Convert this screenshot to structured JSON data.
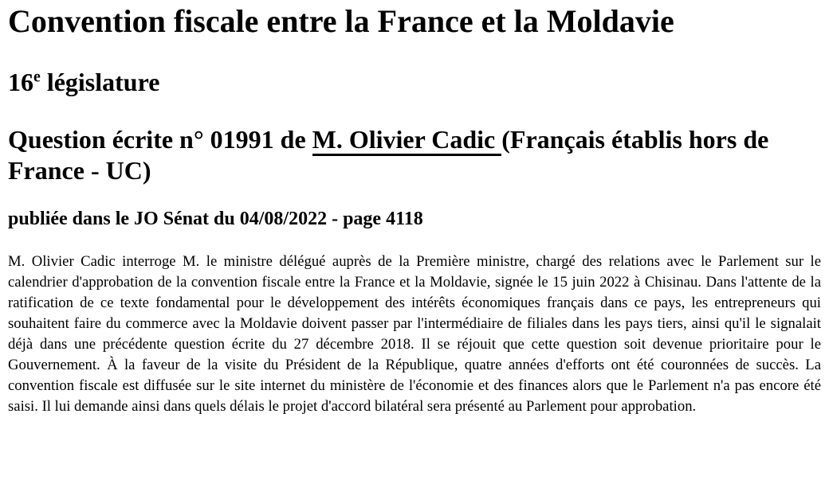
{
  "doc": {
    "title": "Convention fiscale entre la France et la Moldavie",
    "legislature": {
      "number": "16",
      "sup": "e",
      "label": " législature"
    },
    "question": {
      "prefix": "Question écrite n° 01991 de ",
      "senator": "M. Olivier Cadic ",
      "suffix": "(Français établis hors de France - UC)"
    },
    "publication": "publiée dans le JO Sénat du 04/08/2022 - page 4118",
    "body": "M. Olivier Cadic interroge M. le ministre délégué auprès de la Première ministre, chargé des relations avec le Parlement sur le calendrier d'approbation de la convention fiscale entre la France et la Moldavie, signée le 15 juin 2022 à Chisinau. Dans l'attente de la ratification de ce texte fondamental pour le développement des intérêts économiques français dans ce pays, les entrepreneurs qui souhaitent faire du commerce avec la Moldavie doivent passer par l'intermédiaire de filiales dans les pays tiers, ainsi qu'il le signalait déjà dans une précédente question écrite du 27 décembre 2018. Il se réjouit que cette question soit devenue prioritaire pour le Gouvernement. À la faveur de la visite du Président de la République, quatre années d'efforts ont été couronnées de succès. La convention fiscale est diffusée sur le site internet du ministère de l'économie et des finances alors que le Parlement n'a pas encore été saisi. Il lui demande ainsi dans quels délais le projet d'accord bilatéral sera présenté au Parlement pour approbation.",
    "colors": {
      "text": "#000000",
      "background": "#ffffff",
      "link_underline": "#000000"
    }
  }
}
